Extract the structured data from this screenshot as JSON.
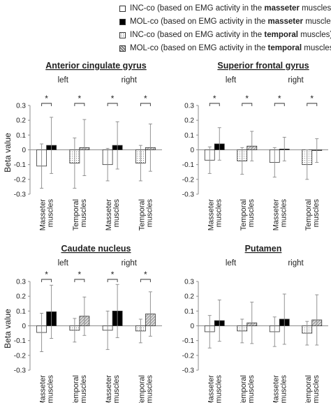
{
  "legend": [
    {
      "label_pre": "INC-co (based on EMG activity in the ",
      "label_bold": "masseter",
      "label_post": " muscles)",
      "fill": "white"
    },
    {
      "label_pre": "MOL-co (based on EMG activity in the ",
      "label_bold": "masseter",
      "label_post": " muscles)",
      "fill": "black"
    },
    {
      "label_pre": "INC-co (based on EMG activity in the ",
      "label_bold": "temporal",
      "label_post": " muscles)",
      "fill": "dots"
    },
    {
      "label_pre": "MOL-co (based on EMG activity in the ",
      "label_bold": "temporal",
      "label_post": " muscles)",
      "fill": "hatch"
    }
  ],
  "colors": {
    "bar_stroke": "#333333",
    "axis": "#8c8c8c",
    "text": "#222222",
    "black_bar": "#000000"
  },
  "chart_data": [
    {
      "type": "bar",
      "title": "Anterior cingulate gyrus",
      "ylabel": "Beta value",
      "ylim": [
        -0.3,
        0.3
      ],
      "yticks": [
        "0.3",
        "0.2",
        "0.1",
        "0",
        "-0.1",
        "-0.2",
        "-0.3"
      ],
      "groups": [
        "left",
        "right"
      ],
      "categories": [
        "Masseter muscles",
        "Temporal muscles",
        "Masseter muscles",
        "Temporal muscles"
      ],
      "series": [
        {
          "values": [
            -0.11,
            -0.09,
            -0.1,
            -0.09
          ],
          "err_up": [
            0.15,
            0.17,
            0.11,
            0.12
          ],
          "err_down": [
            0.15,
            0.17,
            0.11,
            0.12
          ]
        },
        {
          "values": [
            0.03,
            0.015,
            0.03,
            0.015
          ],
          "err_up": [
            0.19,
            0.19,
            0.16,
            0.16
          ],
          "err_down": [
            0.19,
            0.19,
            0.16,
            0.16
          ]
        }
      ],
      "significance": [
        "*",
        "*",
        "*",
        "*"
      ]
    },
    {
      "type": "bar",
      "title": "Superior frontal gyrus",
      "ylabel": "",
      "ylim": [
        -0.3,
        0.3
      ],
      "yticks": [
        "0.3",
        "0.2",
        "0.1",
        "0",
        "-0.1",
        "-0.2",
        "-0.3"
      ],
      "groups": [
        "left",
        "right"
      ],
      "categories": [
        "Masseter muscles",
        "Temporal muscles",
        "Masseter muscles",
        "Temporal muscles"
      ],
      "series": [
        {
          "values": [
            -0.07,
            -0.075,
            -0.085,
            -0.1
          ],
          "err_up": [
            0.09,
            0.09,
            0.1,
            0.1
          ],
          "err_down": [
            0.09,
            0.09,
            0.1,
            0.1
          ]
        },
        {
          "values": [
            0.04,
            0.025,
            0.005,
            -0.005
          ],
          "err_up": [
            0.11,
            0.1,
            0.08,
            0.08
          ],
          "err_down": [
            0.11,
            0.1,
            0.08,
            0.08
          ]
        }
      ],
      "significance": [
        "*",
        "*",
        "*",
        "*"
      ]
    },
    {
      "type": "bar",
      "title": "Caudate nucleus",
      "ylabel": "Beta value",
      "ylim": [
        -0.3,
        0.3
      ],
      "yticks": [
        "0.3",
        "0.2",
        "0.1",
        "0",
        "-0.1",
        "-0.2",
        "-0.3"
      ],
      "groups": [
        "left",
        "right"
      ],
      "categories": [
        "Masseter muscles",
        "Temporal muscles",
        "Masseter muscles",
        "Temporal muscles"
      ],
      "series": [
        {
          "values": [
            -0.045,
            -0.03,
            -0.03,
            -0.035
          ],
          "err_up": [
            0.13,
            0.08,
            0.13,
            0.08
          ],
          "err_down": [
            0.13,
            0.08,
            0.13,
            0.08
          ]
        },
        {
          "values": [
            0.095,
            0.065,
            0.1,
            0.08
          ],
          "err_up": [
            0.18,
            0.13,
            0.18,
            0.15
          ],
          "err_down": [
            0.18,
            0.13,
            0.18,
            0.15
          ]
        }
      ],
      "significance": [
        "*",
        "*",
        "*",
        "*"
      ]
    },
    {
      "type": "bar",
      "title": "Putamen",
      "ylabel": "",
      "ylim": [
        -0.3,
        0.3
      ],
      "yticks": [
        "0.3",
        "0.2",
        "0.1",
        "0",
        "-0.1",
        "-0.2",
        "-0.3"
      ],
      "groups": [
        "left",
        "right"
      ],
      "categories": [
        "Masseter muscles",
        "Temporal muscles",
        "Masseter muscles",
        "Temporal muscles"
      ],
      "series": [
        {
          "values": [
            -0.04,
            -0.035,
            -0.04,
            -0.05
          ],
          "err_up": [
            0.11,
            0.08,
            0.1,
            0.08
          ],
          "err_down": [
            0.11,
            0.08,
            0.1,
            0.08
          ]
        },
        {
          "values": [
            0.035,
            0.02,
            0.045,
            0.04
          ],
          "err_up": [
            0.14,
            0.14,
            0.17,
            0.17
          ],
          "err_down": [
            0.14,
            0.14,
            0.17,
            0.17
          ]
        }
      ],
      "significance": [
        "",
        "",
        "",
        ""
      ]
    }
  ]
}
